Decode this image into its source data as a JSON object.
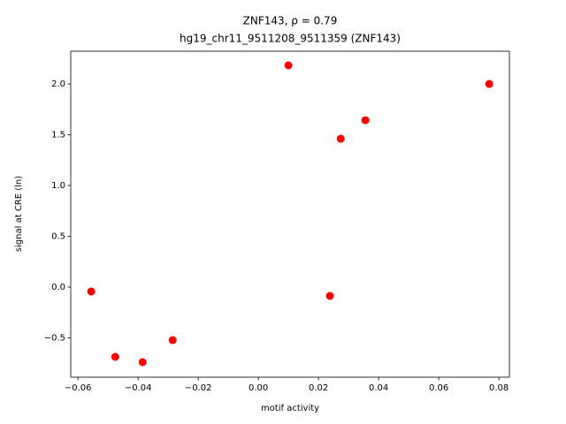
{
  "chart_data": {
    "type": "scatter",
    "title": "ZNF143, ρ = 0.79",
    "subtitle": "hg19_chr11_9511208_9511359 (ZNF143)",
    "x_label": "motif activity",
    "y_label": "signal at CRE (ln)",
    "color": "#ff0000",
    "x": [
      -0.0556,
      -0.0476,
      -0.0385,
      -0.0285,
      0.01,
      0.0238,
      0.0274,
      0.0356,
      0.0768
    ],
    "values": [
      -0.043,
      -0.687,
      -0.739,
      -0.522,
      2.183,
      -0.087,
      1.461,
      1.643,
      2.0
    ],
    "xlim": [
      -0.0624,
      0.0835
    ],
    "ylim": [
      -0.887,
      2.322
    ],
    "xticks": [
      {
        "value": -0.06,
        "label": "−0.06"
      },
      {
        "value": -0.04,
        "label": "−0.04"
      },
      {
        "value": -0.02,
        "label": "−0.02"
      },
      {
        "value": 0,
        "label": "0.00"
      },
      {
        "value": 0.02,
        "label": "0.02"
      },
      {
        "value": 0.04,
        "label": "0.04"
      },
      {
        "value": 0.06,
        "label": "0.06"
      },
      {
        "value": 0.08,
        "label": "0.08"
      }
    ],
    "yticks": [
      {
        "value": -0.5,
        "label": "−0.5"
      },
      {
        "value": 0,
        "label": "0.0"
      },
      {
        "value": 0.5,
        "label": "0.5"
      },
      {
        "value": 1,
        "label": "1.0"
      },
      {
        "value": 1.5,
        "label": "1.5"
      },
      {
        "value": 2,
        "label": "2.0"
      }
    ]
  }
}
